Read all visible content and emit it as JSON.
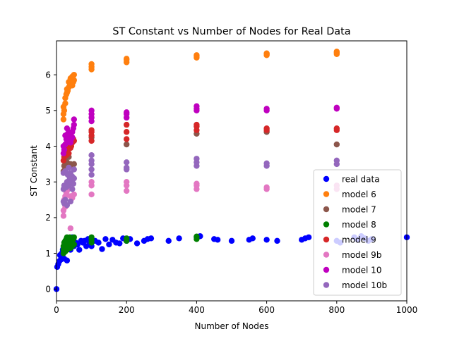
{
  "chart_data": {
    "type": "scatter",
    "title": "ST Constant vs Number of Nodes for Real Data",
    "xlabel": "Number of Nodes",
    "ylabel": "ST Constant",
    "xlim": [
      0,
      1000
    ],
    "ylim": [
      -0.33,
      6.95
    ],
    "xticks": [
      0,
      200,
      400,
      600,
      800,
      1000
    ],
    "yticks": [
      0,
      1,
      2,
      3,
      4,
      5,
      6
    ],
    "grid": false,
    "legend_position": "lower-right",
    "series": [
      {
        "name": "real data",
        "color": "#0000ff",
        "x": [
          0,
          2,
          5,
          8,
          10,
          12,
          15,
          18,
          20,
          22,
          25,
          28,
          30,
          32,
          35,
          38,
          40,
          42,
          45,
          48,
          50,
          55,
          60,
          65,
          70,
          75,
          80,
          85,
          90,
          95,
          100,
          110,
          120,
          130,
          140,
          150,
          160,
          170,
          180,
          190,
          200,
          210,
          230,
          250,
          260,
          270,
          320,
          350,
          400,
          410,
          450,
          460,
          500,
          550,
          560,
          600,
          630,
          700,
          710,
          720,
          800,
          810,
          850,
          860,
          870,
          880,
          890,
          900,
          1000
        ],
        "y": [
          0.0,
          0.62,
          0.7,
          0.78,
          0.95,
          0.82,
          1.0,
          1.1,
          1.15,
          0.85,
          1.3,
          1.25,
          0.8,
          1.35,
          1.2,
          1.4,
          1.1,
          1.3,
          1.45,
          1.35,
          1.2,
          1.3,
          1.25,
          1.1,
          1.35,
          1.3,
          1.35,
          1.2,
          1.4,
          1.3,
          1.2,
          1.35,
          1.3,
          1.12,
          1.4,
          1.25,
          1.38,
          1.3,
          1.28,
          1.42,
          1.35,
          1.4,
          1.28,
          1.35,
          1.4,
          1.42,
          1.35,
          1.42,
          1.45,
          1.48,
          1.4,
          1.38,
          1.35,
          1.38,
          1.42,
          1.38,
          1.35,
          1.38,
          1.42,
          1.45,
          1.35,
          1.3,
          1.45,
          1.38,
          1.48,
          1.42,
          1.35,
          1.4,
          1.45
        ]
      },
      {
        "name": "model 6",
        "color": "#ff7f0e",
        "x": [
          20,
          20,
          20,
          22,
          25,
          25,
          28,
          30,
          30,
          32,
          35,
          35,
          38,
          40,
          40,
          42,
          45,
          45,
          48,
          50,
          50,
          100,
          100,
          100,
          200,
          200,
          200,
          400,
          400,
          400,
          600,
          600,
          600,
          800,
          800,
          800
        ],
        "y": [
          4.75,
          4.9,
          5.1,
          5.0,
          5.2,
          5.35,
          5.45,
          5.5,
          5.6,
          5.55,
          5.65,
          5.8,
          5.7,
          5.75,
          5.9,
          5.85,
          5.95,
          5.7,
          5.8,
          5.85,
          6.0,
          6.15,
          6.22,
          6.3,
          6.35,
          6.42,
          6.45,
          6.48,
          6.52,
          6.55,
          6.55,
          6.58,
          6.6,
          6.58,
          6.62,
          6.65
        ]
      },
      {
        "name": "model 7",
        "color": "#8c564b",
        "x": [
          20,
          22,
          25,
          28,
          30,
          35,
          40,
          45,
          50,
          100,
          200,
          400,
          600,
          800
        ],
        "y": [
          3.3,
          3.45,
          3.6,
          3.4,
          3.55,
          3.7,
          3.5,
          3.45,
          3.5,
          4.25,
          4.05,
          4.35,
          4.4,
          4.05
        ]
      },
      {
        "name": "model 8",
        "color": "#008000",
        "x": [
          20,
          20,
          20,
          22,
          22,
          25,
          25,
          25,
          28,
          28,
          30,
          30,
          30,
          32,
          32,
          35,
          35,
          38,
          38,
          40,
          40,
          40,
          42,
          45,
          45,
          48,
          50,
          50,
          100,
          100,
          100,
          200,
          200,
          400,
          400
        ],
        "y": [
          1.0,
          1.1,
          1.2,
          1.15,
          1.3,
          1.05,
          1.25,
          1.35,
          1.2,
          1.4,
          1.1,
          1.3,
          1.45,
          1.25,
          1.38,
          1.2,
          1.35,
          1.3,
          1.45,
          1.15,
          1.25,
          1.4,
          1.35,
          1.2,
          1.3,
          1.4,
          1.25,
          1.45,
          1.3,
          1.38,
          1.45,
          1.35,
          1.42,
          1.4,
          1.47
        ]
      },
      {
        "name": "model 9",
        "color": "#d62728",
        "x": [
          20,
          22,
          25,
          25,
          28,
          30,
          30,
          32,
          35,
          35,
          38,
          40,
          40,
          42,
          45,
          48,
          50,
          100,
          100,
          100,
          100,
          200,
          200,
          200,
          400,
          400,
          400,
          600,
          600,
          800,
          800
        ],
        "y": [
          3.6,
          3.7,
          3.8,
          3.95,
          3.75,
          3.85,
          4.0,
          3.9,
          4.05,
          3.8,
          4.1,
          3.95,
          4.15,
          4.0,
          4.1,
          4.2,
          4.15,
          4.15,
          4.3,
          4.4,
          4.45,
          4.2,
          4.4,
          4.6,
          4.45,
          4.55,
          4.6,
          4.45,
          4.5,
          4.45,
          4.5
        ]
      },
      {
        "name": "model 9b",
        "color": "#e377c2",
        "x": [
          20,
          20,
          22,
          25,
          25,
          28,
          30,
          30,
          35,
          40,
          40,
          45,
          50,
          100,
          100,
          100,
          200,
          200,
          200,
          400,
          400,
          400,
          600,
          600,
          800,
          800
        ],
        "y": [
          2.05,
          2.2,
          2.5,
          2.3,
          2.6,
          2.7,
          2.75,
          2.85,
          2.9,
          1.7,
          2.6,
          2.55,
          2.65,
          2.65,
          2.9,
          3.0,
          2.75,
          2.9,
          3.0,
          2.8,
          2.9,
          2.95,
          2.8,
          2.85,
          2.8,
          2.9
        ]
      },
      {
        "name": "model 10",
        "color": "#bf00bf",
        "x": [
          20,
          20,
          22,
          25,
          25,
          28,
          30,
          30,
          32,
          35,
          35,
          38,
          40,
          40,
          42,
          45,
          45,
          48,
          50,
          50,
          100,
          100,
          100,
          100,
          200,
          200,
          200,
          400,
          400,
          400,
          600,
          600,
          800,
          800
        ],
        "y": [
          3.8,
          4.0,
          3.9,
          4.05,
          4.3,
          4.2,
          4.1,
          4.5,
          4.35,
          4.2,
          4.4,
          4.3,
          4.1,
          4.35,
          4.2,
          4.25,
          4.4,
          4.5,
          4.6,
          4.75,
          4.7,
          4.8,
          4.9,
          5.0,
          4.8,
          4.9,
          4.95,
          5.0,
          5.05,
          5.12,
          5.0,
          5.05,
          5.05,
          5.08
        ]
      },
      {
        "name": "model 10b",
        "color": "#9467bd",
        "x": [
          20,
          20,
          20,
          22,
          22,
          25,
          25,
          28,
          30,
          30,
          32,
          35,
          35,
          38,
          40,
          40,
          42,
          45,
          45,
          48,
          50,
          50,
          100,
          100,
          100,
          100,
          100,
          200,
          200,
          200,
          400,
          400,
          400,
          600,
          600,
          800,
          800
        ],
        "y": [
          2.45,
          2.8,
          3.25,
          2.4,
          2.9,
          2.5,
          3.3,
          2.85,
          2.35,
          3.0,
          3.2,
          2.9,
          3.4,
          3.1,
          2.45,
          3.25,
          3.0,
          2.8,
          3.15,
          2.95,
          3.1,
          3.35,
          3.2,
          3.35,
          3.5,
          3.6,
          3.75,
          3.35,
          3.4,
          3.55,
          3.45,
          3.55,
          3.65,
          3.45,
          3.52,
          3.5,
          3.6
        ]
      }
    ]
  }
}
